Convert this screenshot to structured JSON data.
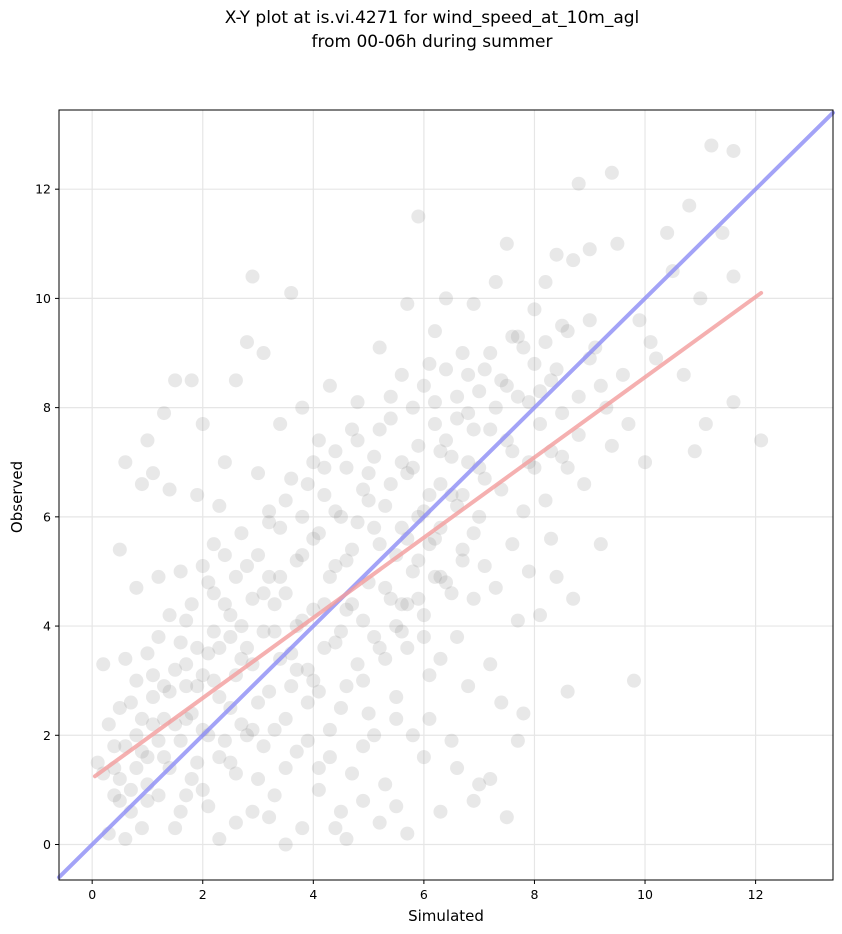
{
  "chart_data": {
    "type": "scatter",
    "title": "X-Y plot at is.vi.4271 for wind_speed_at_10m_agl",
    "subtitle": "from 00-06h during summer",
    "xlabel": "Simulated",
    "ylabel": "Observed",
    "xlim": [
      -0.6,
      13.4
    ],
    "ylim": [
      -0.65,
      13.45
    ],
    "x_ticks": [
      0,
      2,
      4,
      6,
      8,
      10,
      12
    ],
    "y_ticks": [
      0,
      2,
      4,
      6,
      8,
      10,
      12
    ],
    "grid": true,
    "point_color": "#808080",
    "points": [
      [
        0.1,
        1.5
      ],
      [
        0.2,
        1.3
      ],
      [
        0.2,
        3.3
      ],
      [
        0.3,
        2.2
      ],
      [
        0.4,
        0.9
      ],
      [
        0.4,
        1.8
      ],
      [
        0.5,
        2.5
      ],
      [
        0.5,
        5.4
      ],
      [
        0.6,
        7.0
      ],
      [
        0.6,
        3.4
      ],
      [
        0.7,
        1.0
      ],
      [
        0.7,
        0.6
      ],
      [
        0.8,
        2.0
      ],
      [
        0.8,
        4.7
      ],
      [
        0.9,
        6.6
      ],
      [
        0.9,
        1.7
      ],
      [
        1.0,
        0.8
      ],
      [
        1.0,
        3.5
      ],
      [
        1.0,
        7.4
      ],
      [
        1.1,
        2.7
      ],
      [
        1.1,
        6.8
      ],
      [
        1.2,
        0.9
      ],
      [
        1.2,
        4.9
      ],
      [
        1.3,
        7.9
      ],
      [
        1.3,
        2.3
      ],
      [
        1.4,
        1.4
      ],
      [
        1.4,
        6.5
      ],
      [
        1.5,
        3.2
      ],
      [
        1.5,
        8.5
      ],
      [
        1.6,
        0.6
      ],
      [
        1.6,
        5.0
      ],
      [
        1.7,
        2.9
      ],
      [
        1.7,
        4.1
      ],
      [
        1.8,
        8.5
      ],
      [
        1.8,
        1.2
      ],
      [
        1.9,
        6.4
      ],
      [
        1.9,
        3.6
      ],
      [
        2.0,
        2.1
      ],
      [
        2.0,
        7.7
      ],
      [
        2.1,
        4.8
      ],
      [
        2.1,
        0.7
      ],
      [
        2.2,
        5.5
      ],
      [
        2.2,
        3.0
      ],
      [
        2.3,
        6.2
      ],
      [
        2.3,
        1.6
      ],
      [
        2.4,
        4.4
      ],
      [
        2.4,
        7.0
      ],
      [
        2.5,
        2.5
      ],
      [
        2.5,
        3.8
      ],
      [
        2.6,
        8.5
      ],
      [
        2.6,
        0.4
      ],
      [
        2.7,
        5.7
      ],
      [
        2.7,
        4.0
      ],
      [
        2.8,
        9.2
      ],
      [
        2.8,
        2.0
      ],
      [
        2.9,
        10.4
      ],
      [
        2.9,
        3.3
      ],
      [
        3.0,
        6.8
      ],
      [
        3.0,
        1.2
      ],
      [
        3.1,
        4.6
      ],
      [
        3.1,
        9.0
      ],
      [
        3.2,
        2.8
      ],
      [
        3.2,
        5.9
      ],
      [
        3.3,
        3.9
      ],
      [
        3.3,
        0.9
      ],
      [
        3.4,
        7.7
      ],
      [
        3.4,
        4.9
      ],
      [
        3.5,
        2.3
      ],
      [
        3.5,
        6.3
      ],
      [
        3.6,
        10.1
      ],
      [
        3.6,
        3.5
      ],
      [
        3.7,
        1.7
      ],
      [
        3.7,
        5.2
      ],
      [
        3.8,
        8.0
      ],
      [
        3.8,
        4.1
      ],
      [
        3.9,
        2.6
      ],
      [
        3.9,
        6.6
      ],
      [
        4.0,
        3.0
      ],
      [
        4.0,
        5.6
      ],
      [
        4.1,
        7.4
      ],
      [
        4.1,
        1.4
      ],
      [
        4.2,
        4.4
      ],
      [
        4.2,
        6.9
      ],
      [
        4.3,
        2.1
      ],
      [
        4.3,
        8.4
      ],
      [
        4.4,
        3.7
      ],
      [
        4.4,
        5.1
      ],
      [
        4.5,
        0.6
      ],
      [
        4.5,
        6.0
      ],
      [
        4.6,
        4.3
      ],
      [
        4.6,
        2.9
      ],
      [
        4.7,
        7.6
      ],
      [
        4.7,
        5.4
      ],
      [
        4.8,
        3.3
      ],
      [
        4.8,
        8.1
      ],
      [
        4.9,
        1.8
      ],
      [
        4.9,
        6.5
      ],
      [
        5.0,
        4.8
      ],
      [
        5.0,
        2.4
      ],
      [
        5.1,
        7.1
      ],
      [
        5.1,
        5.8
      ],
      [
        5.2,
        3.6
      ],
      [
        5.2,
        9.1
      ],
      [
        5.3,
        1.1
      ],
      [
        5.3,
        6.2
      ],
      [
        5.4,
        4.5
      ],
      [
        5.4,
        7.8
      ],
      [
        5.5,
        2.7
      ],
      [
        5.5,
        5.3
      ],
      [
        5.6,
        8.6
      ],
      [
        5.6,
        3.9
      ],
      [
        5.7,
        6.8
      ],
      [
        5.7,
        9.9
      ],
      [
        5.8,
        2.0
      ],
      [
        5.8,
        5.0
      ],
      [
        5.9,
        7.3
      ],
      [
        5.9,
        11.5
      ],
      [
        6.0,
        4.2
      ],
      [
        6.0,
        6.1
      ],
      [
        6.1,
        8.8
      ],
      [
        6.1,
        2.3
      ],
      [
        6.2,
        5.6
      ],
      [
        6.2,
        9.4
      ],
      [
        6.3,
        3.4
      ],
      [
        6.3,
        7.2
      ],
      [
        6.4,
        4.8
      ],
      [
        6.4,
        10.0
      ],
      [
        6.5,
        1.9
      ],
      [
        6.5,
        6.4
      ],
      [
        6.6,
        8.2
      ],
      [
        6.6,
        3.8
      ],
      [
        6.7,
        5.2
      ],
      [
        6.7,
        9.0
      ],
      [
        6.8,
        2.9
      ],
      [
        6.8,
        7.0
      ],
      [
        6.9,
        4.5
      ],
      [
        6.9,
        9.9
      ],
      [
        7.0,
        6.0
      ],
      [
        7.0,
        1.1
      ],
      [
        7.1,
        8.7
      ],
      [
        7.1,
        5.1
      ],
      [
        7.2,
        3.3
      ],
      [
        7.2,
        7.6
      ],
      [
        7.3,
        10.3
      ],
      [
        7.3,
        4.7
      ],
      [
        7.4,
        6.5
      ],
      [
        7.4,
        2.6
      ],
      [
        7.5,
        8.4
      ],
      [
        7.5,
        11.0
      ],
      [
        7.6,
        5.5
      ],
      [
        7.6,
        7.2
      ],
      [
        7.7,
        4.1
      ],
      [
        7.7,
        9.3
      ],
      [
        7.8,
        6.1
      ],
      [
        7.8,
        2.4
      ],
      [
        7.9,
        8.1
      ],
      [
        7.9,
        5.0
      ],
      [
        8.0,
        9.8
      ],
      [
        8.0,
        6.9
      ],
      [
        8.1,
        4.2
      ],
      [
        8.1,
        7.7
      ],
      [
        8.2,
        10.3
      ],
      [
        8.2,
        6.3
      ],
      [
        8.3,
        8.5
      ],
      [
        8.3,
        5.6
      ],
      [
        8.4,
        10.8
      ],
      [
        8.4,
        4.9
      ],
      [
        8.5,
        7.1
      ],
      [
        8.5,
        9.5
      ],
      [
        8.6,
        2.8
      ],
      [
        8.6,
        6.9
      ],
      [
        8.7,
        10.7
      ],
      [
        8.7,
        4.5
      ],
      [
        8.8,
        12.1
      ],
      [
        8.8,
        7.5
      ],
      [
        8.9,
        6.6
      ],
      [
        9.0,
        8.9
      ],
      [
        9.0,
        10.9
      ],
      [
        9.1,
        9.1
      ],
      [
        9.2,
        5.5
      ],
      [
        9.3,
        8.0
      ],
      [
        9.4,
        12.3
      ],
      [
        9.4,
        7.3
      ],
      [
        9.5,
        11.0
      ],
      [
        9.6,
        8.6
      ],
      [
        9.7,
        7.7
      ],
      [
        9.8,
        3.0
      ],
      [
        9.9,
        9.6
      ],
      [
        10.0,
        7.0
      ],
      [
        10.1,
        9.2
      ],
      [
        10.2,
        8.9
      ],
      [
        10.4,
        11.2
      ],
      [
        10.5,
        10.5
      ],
      [
        10.7,
        8.6
      ],
      [
        10.8,
        11.7
      ],
      [
        10.9,
        7.2
      ],
      [
        11.0,
        10.0
      ],
      [
        11.1,
        7.7
      ],
      [
        11.2,
        12.8
      ],
      [
        11.4,
        11.2
      ],
      [
        11.6,
        12.7
      ],
      [
        11.6,
        10.4
      ],
      [
        11.6,
        8.1
      ],
      [
        12.1,
        7.4
      ],
      [
        0.3,
        0.2
      ],
      [
        0.5,
        1.2
      ],
      [
        0.6,
        0.1
      ],
      [
        0.9,
        0.3
      ],
      [
        1.2,
        1.9
      ],
      [
        1.5,
        0.3
      ],
      [
        1.7,
        0.9
      ],
      [
        2.0,
        1.0
      ],
      [
        2.3,
        0.1
      ],
      [
        2.6,
        1.3
      ],
      [
        2.9,
        0.6
      ],
      [
        3.2,
        0.5
      ],
      [
        3.5,
        0.0
      ],
      [
        3.8,
        0.3
      ],
      [
        4.1,
        1.0
      ],
      [
        4.4,
        0.3
      ],
      [
        4.6,
        0.1
      ],
      [
        4.9,
        0.8
      ],
      [
        5.2,
        0.4
      ],
      [
        5.5,
        0.7
      ],
      [
        5.7,
        0.2
      ],
      [
        6.0,
        1.6
      ],
      [
        6.3,
        0.6
      ],
      [
        6.6,
        1.4
      ],
      [
        6.9,
        0.8
      ],
      [
        7.2,
        1.2
      ],
      [
        7.5,
        0.5
      ],
      [
        7.7,
        1.9
      ],
      [
        0.8,
        1.4
      ],
      [
        1.0,
        1.1
      ],
      [
        1.1,
        2.2
      ],
      [
        1.3,
        1.6
      ],
      [
        1.4,
        2.8
      ],
      [
        1.6,
        1.9
      ],
      [
        1.7,
        3.3
      ],
      [
        1.8,
        2.4
      ],
      [
        1.9,
        1.5
      ],
      [
        2.0,
        3.1
      ],
      [
        2.1,
        2.0
      ],
      [
        2.2,
        3.9
      ],
      [
        2.3,
        2.7
      ],
      [
        2.4,
        1.9
      ],
      [
        2.5,
        4.2
      ],
      [
        2.6,
        3.1
      ],
      [
        2.7,
        2.2
      ],
      [
        2.8,
        3.6
      ],
      [
        2.9,
        4.5
      ],
      [
        3.0,
        2.6
      ],
      [
        3.1,
        3.9
      ],
      [
        3.2,
        4.9
      ],
      [
        3.3,
        2.1
      ],
      [
        3.4,
        3.4
      ],
      [
        3.5,
        4.6
      ],
      [
        3.6,
        2.9
      ],
      [
        3.7,
        4.0
      ],
      [
        3.8,
        5.3
      ],
      [
        3.9,
        3.2
      ],
      [
        4.0,
        4.3
      ],
      [
        4.1,
        5.7
      ],
      [
        4.2,
        3.6
      ],
      [
        4.3,
        4.9
      ],
      [
        4.4,
        6.1
      ],
      [
        4.5,
        3.9
      ],
      [
        4.6,
        5.2
      ],
      [
        4.7,
        4.4
      ],
      [
        4.8,
        5.9
      ],
      [
        4.9,
        4.1
      ],
      [
        5.0,
        6.3
      ],
      [
        5.1,
        3.8
      ],
      [
        5.2,
        5.5
      ],
      [
        5.3,
        4.7
      ],
      [
        5.4,
        6.6
      ],
      [
        5.5,
        4.0
      ],
      [
        5.6,
        5.8
      ],
      [
        5.7,
        4.4
      ],
      [
        5.8,
        6.9
      ],
      [
        5.9,
        5.2
      ],
      [
        6.0,
        3.8
      ],
      [
        6.1,
        6.4
      ],
      [
        6.2,
        4.9
      ],
      [
        6.3,
        5.8
      ],
      [
        6.4,
        7.4
      ],
      [
        6.5,
        4.6
      ],
      [
        6.6,
        6.2
      ],
      [
        6.7,
        5.4
      ],
      [
        6.8,
        7.9
      ],
      [
        6.9,
        5.7
      ],
      [
        7.0,
        6.9
      ],
      [
        0.4,
        1.4
      ],
      [
        0.5,
        0.8
      ],
      [
        0.6,
        1.8
      ],
      [
        0.7,
        2.6
      ],
      [
        0.8,
        3.0
      ],
      [
        0.9,
        2.3
      ],
      [
        1.0,
        1.6
      ],
      [
        1.1,
        3.1
      ],
      [
        1.2,
        3.8
      ],
      [
        1.3,
        2.9
      ],
      [
        1.4,
        4.2
      ],
      [
        1.5,
        2.2
      ],
      [
        1.6,
        3.7
      ],
      [
        1.7,
        2.3
      ],
      [
        1.8,
        4.4
      ],
      [
        1.9,
        2.9
      ],
      [
        2.0,
        5.1
      ],
      [
        2.1,
        3.5
      ],
      [
        2.2,
        4.6
      ],
      [
        2.3,
        3.6
      ],
      [
        2.4,
        5.3
      ],
      [
        2.5,
        1.5
      ],
      [
        2.6,
        4.9
      ],
      [
        2.7,
        3.4
      ],
      [
        2.8,
        5.1
      ],
      [
        2.9,
        2.1
      ],
      [
        3.0,
        5.3
      ],
      [
        3.1,
        1.8
      ],
      [
        3.2,
        6.1
      ],
      [
        3.3,
        4.4
      ],
      [
        3.4,
        5.8
      ],
      [
        3.5,
        1.4
      ],
      [
        3.6,
        6.7
      ],
      [
        3.7,
        3.2
      ],
      [
        3.8,
        6.0
      ],
      [
        3.9,
        1.9
      ],
      [
        4.0,
        7.0
      ],
      [
        4.1,
        2.8
      ],
      [
        4.2,
        6.4
      ],
      [
        4.3,
        1.6
      ],
      [
        4.4,
        7.2
      ],
      [
        4.5,
        2.5
      ],
      [
        4.6,
        6.9
      ],
      [
        4.7,
        1.3
      ],
      [
        4.8,
        7.4
      ],
      [
        4.9,
        3.0
      ],
      [
        5.0,
        6.8
      ],
      [
        5.1,
        2.0
      ],
      [
        5.2,
        7.6
      ],
      [
        5.3,
        3.4
      ],
      [
        5.4,
        8.2
      ],
      [
        5.5,
        2.3
      ],
      [
        5.6,
        7.0
      ],
      [
        5.7,
        3.6
      ],
      [
        5.8,
        8.0
      ],
      [
        5.9,
        4.5
      ],
      [
        6.0,
        8.4
      ],
      [
        6.1,
        3.1
      ],
      [
        6.2,
        7.7
      ],
      [
        6.3,
        4.9
      ],
      [
        5.6,
        4.4
      ],
      [
        5.7,
        5.6
      ],
      [
        5.9,
        6.0
      ],
      [
        6.1,
        5.5
      ],
      [
        6.3,
        6.6
      ],
      [
        6.5,
        7.1
      ],
      [
        6.7,
        6.4
      ],
      [
        6.9,
        7.6
      ],
      [
        7.1,
        6.7
      ],
      [
        7.3,
        8.0
      ],
      [
        7.5,
        7.4
      ],
      [
        7.7,
        8.2
      ],
      [
        7.9,
        7.0
      ],
      [
        8.1,
        8.3
      ],
      [
        8.3,
        7.2
      ],
      [
        8.5,
        7.9
      ],
      [
        6.2,
        8.1
      ],
      [
        6.4,
        8.7
      ],
      [
        6.6,
        7.8
      ],
      [
        6.8,
        8.6
      ],
      [
        7.0,
        8.3
      ],
      [
        7.2,
        9.0
      ],
      [
        7.4,
        8.5
      ],
      [
        7.6,
        9.3
      ],
      [
        7.8,
        9.1
      ],
      [
        8.0,
        8.8
      ],
      [
        8.2,
        9.2
      ],
      [
        8.4,
        8.7
      ],
      [
        8.6,
        9.4
      ],
      [
        8.8,
        8.2
      ],
      [
        9.0,
        9.6
      ],
      [
        9.2,
        8.4
      ]
    ],
    "lines": [
      {
        "color": "#8c8cf5",
        "x": [
          -0.6,
          13.4
        ],
        "y": [
          -0.6,
          13.4
        ]
      },
      {
        "color": "#f29c9c",
        "x": [
          0.05,
          12.1
        ],
        "y": [
          1.25,
          10.1
        ]
      }
    ]
  }
}
